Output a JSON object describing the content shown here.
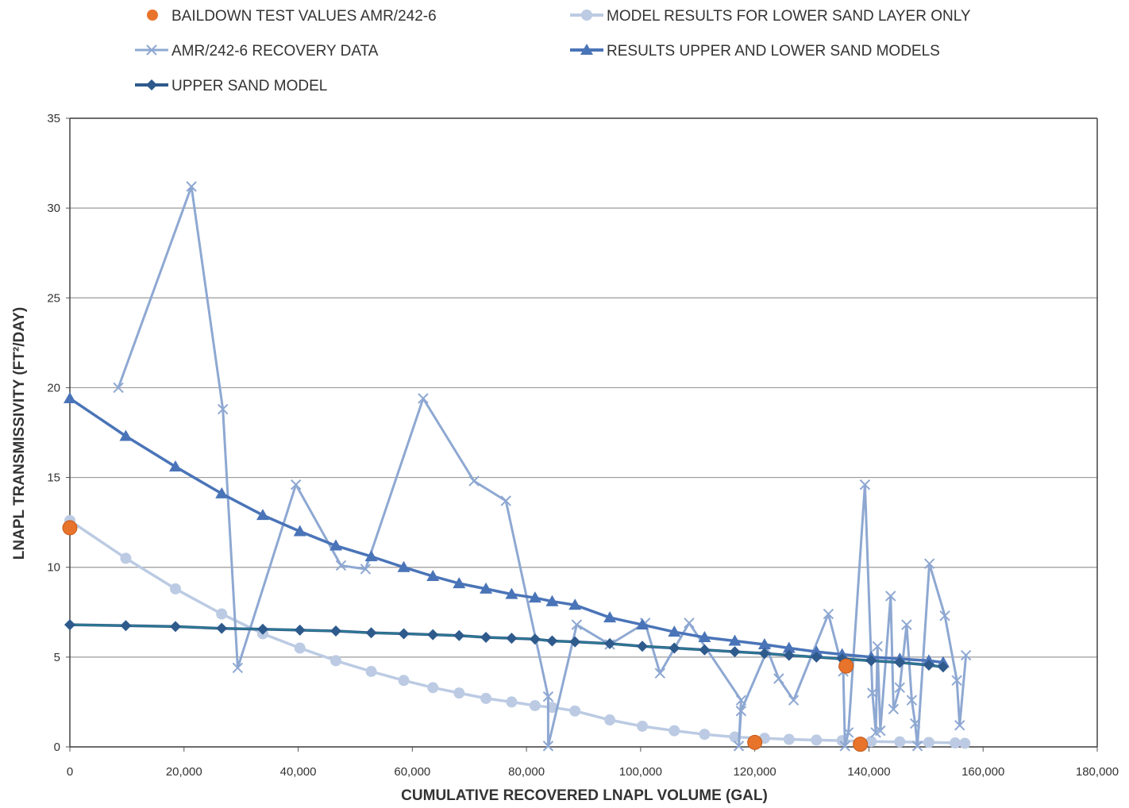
{
  "chart_data": {
    "type": "scatter",
    "xlabel": "CUMULATIVE RECOVERED LNAPL VOLUME (GAL)",
    "ylabel": "LNAPL TRANSMISSIVITY (FT²/DAY)",
    "xlim": [
      0,
      180000
    ],
    "ylim": [
      0,
      35
    ],
    "x_ticks": [
      0,
      20000,
      40000,
      60000,
      80000,
      100000,
      120000,
      140000,
      160000,
      180000
    ],
    "x_tick_labels": [
      "0",
      "20,000",
      "40,000",
      "60,000",
      "80,000",
      "100,000",
      "120,000",
      "140,000",
      "160,000",
      "180,000"
    ],
    "y_ticks": [
      0,
      5,
      10,
      15,
      20,
      25,
      30,
      35
    ],
    "y_tick_labels": [
      "0",
      "5",
      "10",
      "15",
      "20",
      "25",
      "30",
      "35"
    ],
    "grid": "horizontal",
    "legend_position": "top",
    "series": [
      {
        "name": "BAILDOWN TEST VALUES AMR/242-6",
        "style": "markers-circle",
        "color": "#e8732b",
        "points": [
          [
            0,
            12.2
          ],
          [
            120000,
            0.25
          ],
          [
            136000,
            4.5
          ],
          [
            138500,
            0.15
          ]
        ]
      },
      {
        "name": "MODEL RESULTS FOR LOWER SAND LAYER ONLY",
        "style": "line-circle",
        "color": "#bccbe3",
        "points": [
          [
            0,
            12.6
          ],
          [
            9800,
            10.5
          ],
          [
            18500,
            8.8
          ],
          [
            26600,
            7.4
          ],
          [
            33800,
            6.3
          ],
          [
            40300,
            5.5
          ],
          [
            46600,
            4.8
          ],
          [
            52800,
            4.2
          ],
          [
            58500,
            3.7
          ],
          [
            63600,
            3.3
          ],
          [
            68200,
            3.0
          ],
          [
            72900,
            2.7
          ],
          [
            77400,
            2.5
          ],
          [
            81500,
            2.3
          ],
          [
            84500,
            2.2
          ],
          [
            88500,
            2.0
          ],
          [
            94600,
            1.5
          ],
          [
            100300,
            1.15
          ],
          [
            105900,
            0.9
          ],
          [
            111200,
            0.7
          ],
          [
            116500,
            0.55
          ],
          [
            121700,
            0.48
          ],
          [
            126000,
            0.42
          ],
          [
            130800,
            0.38
          ],
          [
            135300,
            0.35
          ],
          [
            140400,
            0.3
          ],
          [
            145400,
            0.28
          ],
          [
            150500,
            0.25
          ],
          [
            155100,
            0.22
          ],
          [
            156800,
            0.2
          ]
        ]
      },
      {
        "name": "AMR/242-6 RECOVERY DATA",
        "style": "line-x",
        "color": "#8ea8d2",
        "points": [
          [
            8500,
            20.0
          ],
          [
            21300,
            31.2
          ],
          [
            26800,
            18.8
          ],
          [
            29400,
            4.4
          ],
          [
            39600,
            14.6
          ],
          [
            47500,
            10.1
          ],
          [
            51800,
            9.9
          ],
          [
            61900,
            19.4
          ],
          [
            70800,
            14.8
          ],
          [
            76400,
            13.7
          ],
          [
            83800,
            2.8
          ],
          [
            83800,
            0.05
          ],
          [
            88800,
            6.8
          ],
          [
            94600,
            5.7
          ],
          [
            100800,
            6.9
          ],
          [
            103400,
            4.1
          ],
          [
            108500,
            6.9
          ],
          [
            117600,
            2.6
          ],
          [
            117200,
            0.05
          ],
          [
            117600,
            2.0
          ],
          [
            122200,
            5.4
          ],
          [
            124200,
            3.8
          ],
          [
            126800,
            2.6
          ],
          [
            132900,
            7.4
          ],
          [
            135500,
            4.2
          ],
          [
            135800,
            0.05
          ],
          [
            136400,
            0.8
          ],
          [
            139300,
            14.6
          ],
          [
            140600,
            3.0
          ],
          [
            141200,
            0.8
          ],
          [
            141500,
            5.6
          ],
          [
            142000,
            0.9
          ],
          [
            143800,
            8.4
          ],
          [
            144300,
            2.1
          ],
          [
            145400,
            3.3
          ],
          [
            146600,
            6.8
          ],
          [
            147500,
            2.6
          ],
          [
            148100,
            1.3
          ],
          [
            148500,
            0.05
          ],
          [
            150600,
            10.2
          ],
          [
            153300,
            7.3
          ],
          [
            155400,
            3.7
          ],
          [
            155900,
            1.2
          ],
          [
            157000,
            5.1
          ]
        ]
      },
      {
        "name": "RESULTS UPPER AND LOWER SAND MODELS",
        "style": "line-triangle",
        "color": "#4a74b8",
        "points": [
          [
            0,
            19.4
          ],
          [
            9800,
            17.3
          ],
          [
            18500,
            15.6
          ],
          [
            26600,
            14.1
          ],
          [
            33800,
            12.9
          ],
          [
            40300,
            12.0
          ],
          [
            46600,
            11.2
          ],
          [
            52800,
            10.6
          ],
          [
            58500,
            10.0
          ],
          [
            63600,
            9.5
          ],
          [
            68200,
            9.1
          ],
          [
            72900,
            8.8
          ],
          [
            77400,
            8.5
          ],
          [
            81500,
            8.3
          ],
          [
            84500,
            8.1
          ],
          [
            88500,
            7.9
          ],
          [
            94600,
            7.2
          ],
          [
            100300,
            6.8
          ],
          [
            105900,
            6.4
          ],
          [
            111200,
            6.1
          ],
          [
            116500,
            5.9
          ],
          [
            121700,
            5.7
          ],
          [
            126000,
            5.5
          ],
          [
            130800,
            5.3
          ],
          [
            135300,
            5.15
          ],
          [
            140400,
            5.0
          ],
          [
            145400,
            4.9
          ],
          [
            150500,
            4.8
          ],
          [
            153000,
            4.7
          ]
        ]
      },
      {
        "name": "UPPER SAND MODEL",
        "style": "line-diamond",
        "color": "#2e5a8c",
        "points": [
          [
            0,
            6.8
          ],
          [
            9800,
            6.75
          ],
          [
            18500,
            6.7
          ],
          [
            26600,
            6.6
          ],
          [
            33800,
            6.55
          ],
          [
            40300,
            6.5
          ],
          [
            46600,
            6.45
          ],
          [
            52800,
            6.35
          ],
          [
            58500,
            6.3
          ],
          [
            63600,
            6.25
          ],
          [
            68200,
            6.2
          ],
          [
            72900,
            6.1
          ],
          [
            77400,
            6.05
          ],
          [
            81500,
            6.0
          ],
          [
            84500,
            5.9
          ],
          [
            88500,
            5.85
          ],
          [
            94600,
            5.75
          ],
          [
            100300,
            5.6
          ],
          [
            105900,
            5.5
          ],
          [
            111200,
            5.4
          ],
          [
            116500,
            5.3
          ],
          [
            121700,
            5.2
          ],
          [
            126000,
            5.1
          ],
          [
            130800,
            5.0
          ],
          [
            135300,
            4.9
          ],
          [
            140400,
            4.8
          ],
          [
            145400,
            4.7
          ],
          [
            150500,
            4.55
          ],
          [
            153000,
            4.45
          ]
        ]
      }
    ]
  }
}
